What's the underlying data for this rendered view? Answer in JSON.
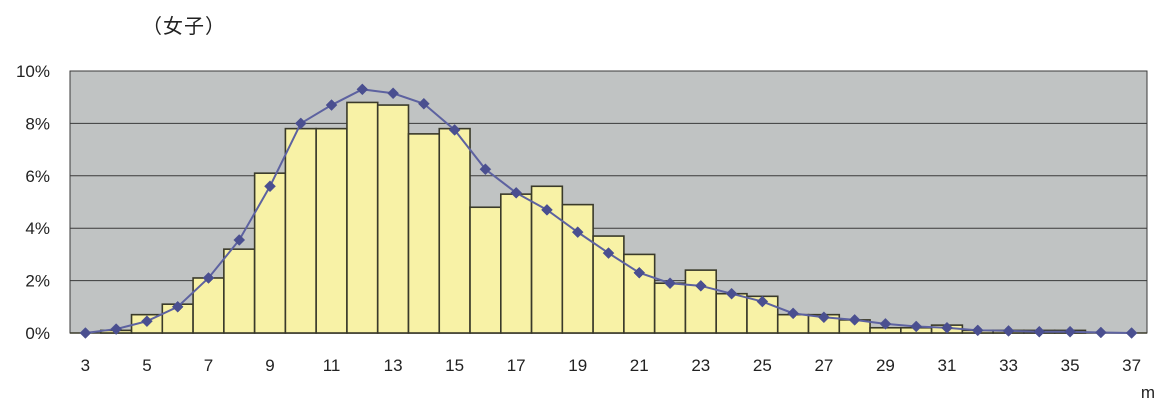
{
  "chart_data": {
    "type": "bar",
    "title": "（女子）",
    "x_unit_label": "m",
    "ylim": [
      0,
      10
    ],
    "y_ticks": [
      "0%",
      "2%",
      "4%",
      "6%",
      "8%",
      "10%"
    ],
    "x_tick_labels": [
      "3",
      "5",
      "7",
      "9",
      "11",
      "13",
      "15",
      "17",
      "19",
      "21",
      "23",
      "25",
      "27",
      "29",
      "31",
      "33",
      "35",
      "37"
    ],
    "grid": true,
    "categories": [
      3,
      4,
      5,
      6,
      7,
      8,
      9,
      10,
      11,
      12,
      13,
      14,
      15,
      16,
      17,
      18,
      19,
      20,
      21,
      22,
      23,
      24,
      25,
      26,
      27,
      28,
      29,
      30,
      31,
      32,
      33,
      34,
      35,
      36,
      37
    ],
    "series": [
      {
        "type": "bar",
        "values": [
          0.0,
          0.1,
          0.7,
          1.1,
          2.1,
          3.2,
          6.1,
          7.8,
          7.8,
          8.8,
          8.7,
          7.6,
          7.8,
          4.8,
          5.3,
          5.6,
          4.9,
          3.7,
          3.0,
          1.9,
          2.4,
          1.5,
          1.4,
          0.7,
          0.7,
          0.5,
          0.2,
          0.2,
          0.3,
          0.1,
          0.1,
          0.1,
          0.1,
          0.0,
          0.0
        ]
      },
      {
        "type": "line",
        "values": [
          0.0,
          0.15,
          0.45,
          1.0,
          2.1,
          3.55,
          5.6,
          8.0,
          8.7,
          9.3,
          9.15,
          8.75,
          7.75,
          6.25,
          5.35,
          4.7,
          3.85,
          3.05,
          2.3,
          1.9,
          1.8,
          1.5,
          1.2,
          0.75,
          0.6,
          0.5,
          0.35,
          0.25,
          0.2,
          0.1,
          0.08,
          0.05,
          0.05,
          0.02,
          0.0
        ]
      }
    ],
    "colors": {
      "plot_background": "#c0c3c3",
      "bar_fill": "#f8f2a6",
      "bar_stroke": "#3a3a2a",
      "line": "#5d62a0",
      "marker": "#4a4f90",
      "grid": "#3a3a3a"
    }
  }
}
